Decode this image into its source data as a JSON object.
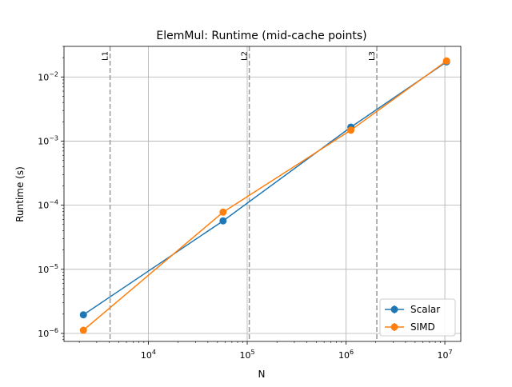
{
  "chart_data": {
    "type": "line",
    "title": "ElemMul: Runtime (mid-cache points)",
    "xlabel": "N",
    "ylabel": "Runtime (s)",
    "xscale": "log",
    "yscale": "log",
    "xlim": [
      1400,
      14500000
    ],
    "ylim": [
      7.5e-07,
      0.03
    ],
    "grid": true,
    "legend_position": "lower-right",
    "x_ticks": [
      {
        "value": 10000,
        "base": "10",
        "exp": "4"
      },
      {
        "value": 100000,
        "base": "10",
        "exp": "5"
      },
      {
        "value": 1000000,
        "base": "10",
        "exp": "6"
      },
      {
        "value": 10000000,
        "base": "10",
        "exp": "7"
      }
    ],
    "y_ticks": [
      {
        "value": 1e-06,
        "base": "10",
        "exp": "−6"
      },
      {
        "value": 1e-05,
        "base": "10",
        "exp": "−5"
      },
      {
        "value": 0.0001,
        "base": "10",
        "exp": "−4"
      },
      {
        "value": 0.001,
        "base": "10",
        "exp": "−3"
      },
      {
        "value": 0.01,
        "base": "10",
        "exp": "−2"
      }
    ],
    "cache_lines": [
      {
        "label": "L1",
        "x": 4096
      },
      {
        "label": "L2",
        "x": 105000
      },
      {
        "label": "L3",
        "x": 2050000
      }
    ],
    "series": [
      {
        "name": "Scalar",
        "color": "#1f77b4",
        "x": [
          2200,
          57000,
          1120000,
          10400000
        ],
        "y": [
          1.95e-06,
          5.7e-05,
          0.00165,
          0.0172
        ]
      },
      {
        "name": "SIMD",
        "color": "#ff7f0e",
        "x": [
          2200,
          57000,
          1120000,
          10400000
        ],
        "y": [
          1.12e-06,
          7.8e-05,
          0.00148,
          0.0178
        ]
      }
    ]
  }
}
